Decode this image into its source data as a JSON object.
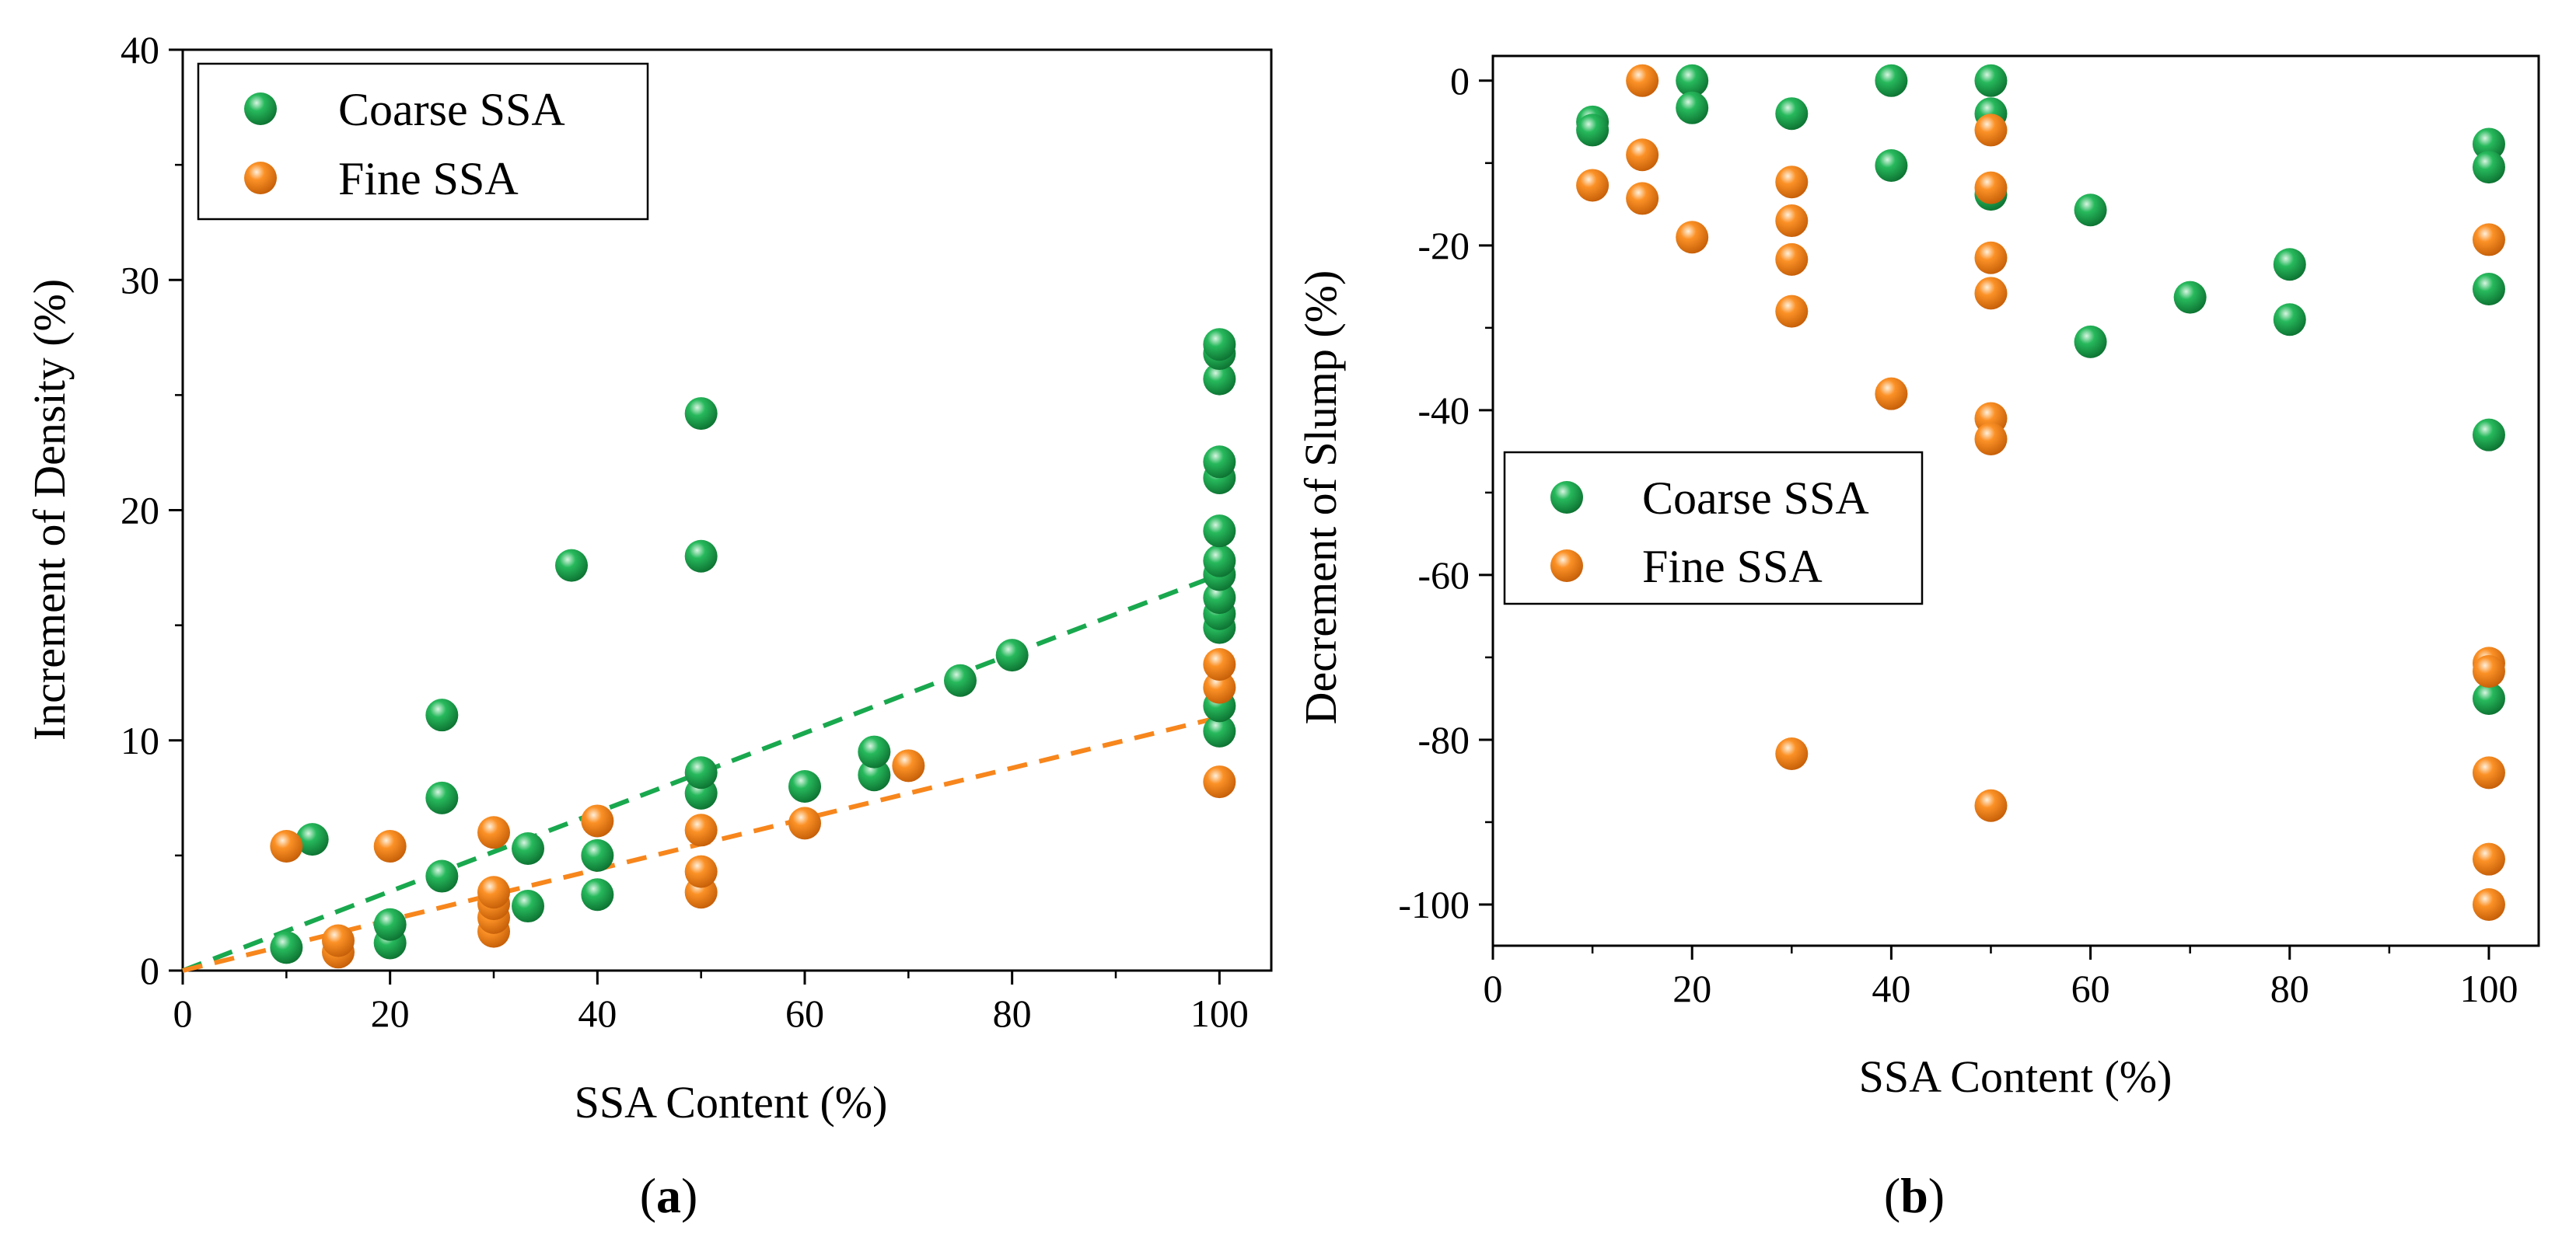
{
  "colors": {
    "coarse": "#19a84e",
    "coarse_dark": "#0f7a36",
    "fine": "#f7861c",
    "fine_dark": "#c8620a",
    "axis": "#000000",
    "background": "#ffffff"
  },
  "chart_data": [
    {
      "type": "scatter",
      "panel_label": "a",
      "title": "",
      "xlabel": "SSA Content (%)",
      "ylabel": "Increment of Density (%)",
      "xlim": [
        0,
        105
      ],
      "ylim": [
        0,
        40
      ],
      "xticks": [
        0,
        20,
        40,
        60,
        80,
        100
      ],
      "xtick_labels": [
        "0",
        "20",
        "40",
        "60",
        "80",
        "100"
      ],
      "yticks": [
        0,
        10,
        20,
        30,
        40
      ],
      "ytick_labels": [
        "0",
        "10",
        "20",
        "30",
        "40"
      ],
      "legend_position": "top-left",
      "series": [
        {
          "name": "Coarse SSA",
          "color_key": "coarse",
          "points": [
            [
              10,
              1.0
            ],
            [
              12.5,
              5.7
            ],
            [
              20,
              1.2
            ],
            [
              20,
              2.0
            ],
            [
              25,
              4.1
            ],
            [
              25,
              7.5
            ],
            [
              25,
              11.1
            ],
            [
              33.3,
              2.8
            ],
            [
              33.3,
              5.3
            ],
            [
              37.5,
              17.6
            ],
            [
              40,
              3.3
            ],
            [
              40,
              5.0
            ],
            [
              50,
              7.7
            ],
            [
              50,
              8.6
            ],
            [
              50,
              18.0
            ],
            [
              50,
              24.2
            ],
            [
              60,
              8.0
            ],
            [
              66.7,
              8.5
            ],
            [
              66.7,
              9.5
            ],
            [
              75,
              12.6
            ],
            [
              80,
              13.7
            ],
            [
              100,
              10.4
            ],
            [
              100,
              11.5
            ],
            [
              100,
              14.9
            ],
            [
              100,
              15.5
            ],
            [
              100,
              16.2
            ],
            [
              100,
              17.2
            ],
            [
              100,
              17.8
            ],
            [
              100,
              19.1
            ],
            [
              100,
              21.4
            ],
            [
              100,
              22.1
            ],
            [
              100,
              25.7
            ],
            [
              100,
              26.8
            ],
            [
              100,
              27.2
            ]
          ],
          "trend": {
            "from": [
              0,
              0
            ],
            "to": [
              100,
              17.2
            ]
          }
        },
        {
          "name": "Fine SSA",
          "color_key": "fine",
          "points": [
            [
              10,
              5.4
            ],
            [
              15,
              0.8
            ],
            [
              15,
              1.3
            ],
            [
              20,
              5.4
            ],
            [
              30,
              1.7
            ],
            [
              30,
              2.3
            ],
            [
              30,
              2.9
            ],
            [
              30,
              3.4
            ],
            [
              30,
              6.0
            ],
            [
              40,
              6.5
            ],
            [
              50,
              3.4
            ],
            [
              50,
              4.3
            ],
            [
              50,
              6.1
            ],
            [
              60,
              6.4
            ],
            [
              70,
              8.9
            ],
            [
              100,
              8.2
            ],
            [
              100,
              12.3
            ],
            [
              100,
              13.3
            ]
          ],
          "trend": {
            "from": [
              0,
              0
            ],
            "to": [
              100,
              11.0
            ]
          }
        }
      ]
    },
    {
      "type": "scatter",
      "panel_label": "b",
      "title": "",
      "xlabel": "SSA Content (%)",
      "ylabel": "Decrement of Slump (%)",
      "xlim": [
        0,
        105
      ],
      "ylim": [
        -105,
        3
      ],
      "xticks": [
        0,
        20,
        40,
        60,
        80,
        100
      ],
      "xtick_labels": [
        "0",
        "20",
        "40",
        "60",
        "80",
        "100"
      ],
      "yticks": [
        0,
        -20,
        -40,
        -60,
        -80,
        -100
      ],
      "ytick_labels": [
        "0",
        "-20",
        "-40",
        "-60",
        "-80",
        "-100"
      ],
      "legend_position": "center-left",
      "series": [
        {
          "name": "Coarse SSA",
          "color_key": "coarse",
          "points": [
            [
              10,
              -5.0
            ],
            [
              10,
              -6.0
            ],
            [
              20,
              0
            ],
            [
              20,
              -3.3
            ],
            [
              30,
              -4.0
            ],
            [
              40,
              0
            ],
            [
              40,
              -10.3
            ],
            [
              50,
              0
            ],
            [
              50,
              -4.0
            ],
            [
              50,
              -13.8
            ],
            [
              60,
              -15.7
            ],
            [
              60,
              -31.7
            ],
            [
              70,
              -26.3
            ],
            [
              80,
              -22.3
            ],
            [
              80,
              -29.0
            ],
            [
              100,
              -7.7
            ],
            [
              100,
              -10.5
            ],
            [
              100,
              -25.3
            ],
            [
              100,
              -43.0
            ],
            [
              100,
              -75.0
            ]
          ]
        },
        {
          "name": "Fine SSA",
          "color_key": "fine",
          "points": [
            [
              10,
              -12.7
            ],
            [
              15,
              0
            ],
            [
              15,
              -9.0
            ],
            [
              15,
              -14.3
            ],
            [
              20,
              -19.0
            ],
            [
              30,
              -12.3
            ],
            [
              30,
              -17.0
            ],
            [
              30,
              -21.7
            ],
            [
              30,
              -28.0
            ],
            [
              30,
              -81.7
            ],
            [
              40,
              -38.0
            ],
            [
              50,
              -6.0
            ],
            [
              50,
              -13.0
            ],
            [
              50,
              -21.5
            ],
            [
              50,
              -25.8
            ],
            [
              50,
              -41.0
            ],
            [
              50,
              -43.5
            ],
            [
              50,
              -88.0
            ],
            [
              100,
              -19.3
            ],
            [
              100,
              -70.7
            ],
            [
              100,
              -71.7
            ],
            [
              100,
              -84.0
            ],
            [
              100,
              -94.5
            ],
            [
              100,
              -100.0
            ]
          ]
        }
      ]
    }
  ]
}
